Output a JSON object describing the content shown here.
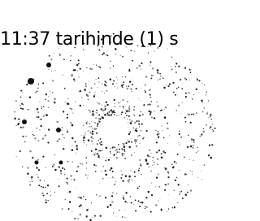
{
  "text": "11:37 tarihinde (1) s"
}
